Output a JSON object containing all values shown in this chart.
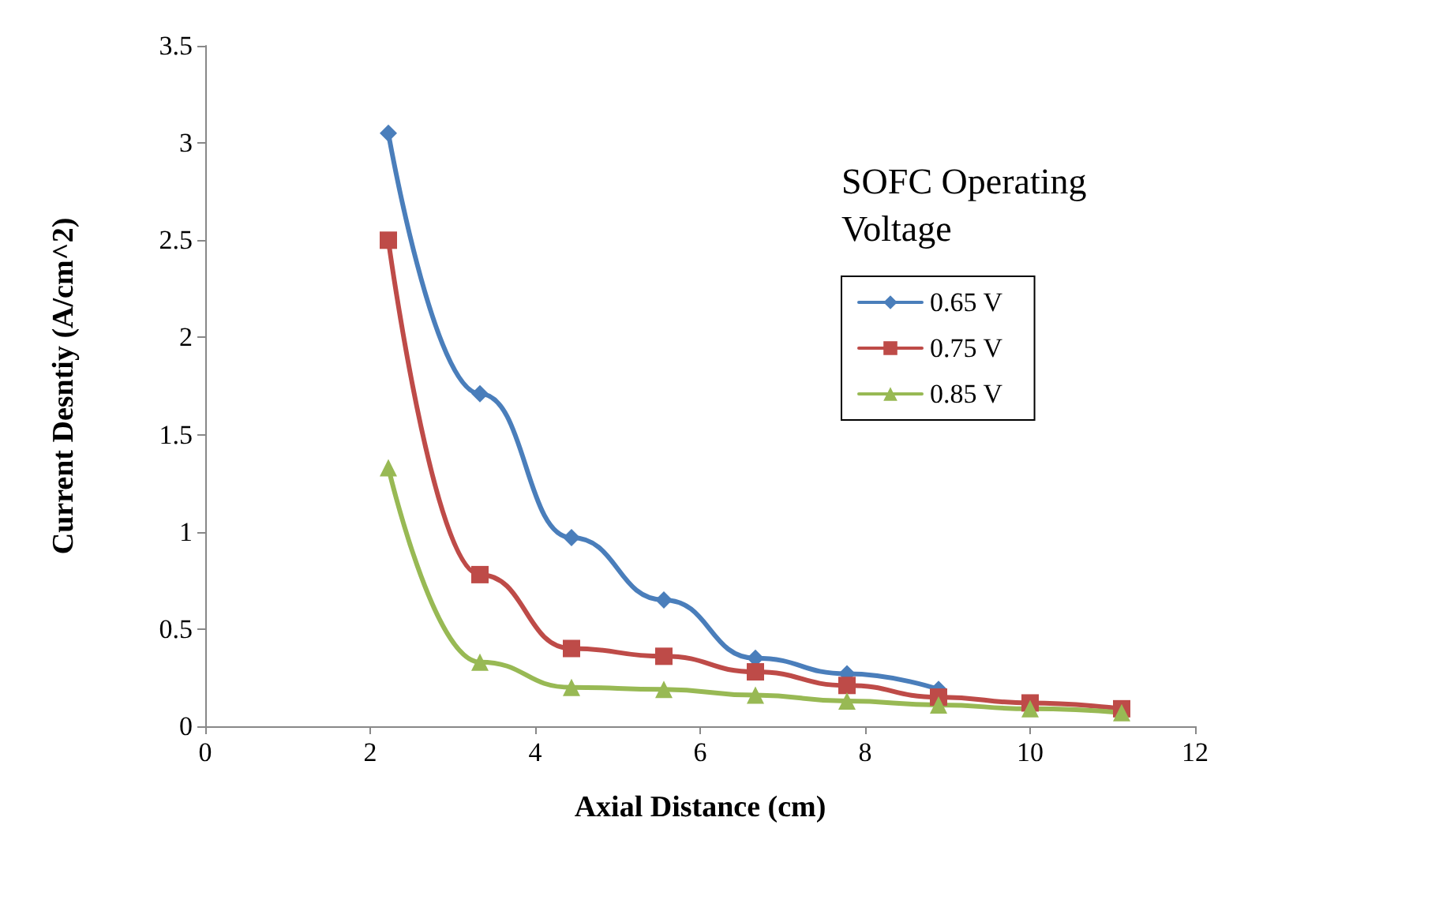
{
  "chart_data": {
    "type": "line",
    "xlabel": "Axial Distance (cm)",
    "ylabel": "Current Desntiy (A/cm^2)",
    "legend_title": "SOFC Operating Voltage",
    "legend": "right",
    "x": [
      2.22,
      3.33,
      4.44,
      5.56,
      6.67,
      7.78,
      8.89,
      10,
      11.11
    ],
    "series": [
      {
        "name": "0.65 V",
        "color": "#4a7ebb",
        "marker": "diamond",
        "values": [
          3.05,
          1.71,
          0.97,
          0.65,
          0.35,
          0.27,
          0.19,
          null,
          null
        ]
      },
      {
        "name": "0.75 V",
        "color": "#be4b48",
        "marker": "square",
        "values": [
          2.5,
          0.78,
          0.4,
          0.36,
          0.28,
          0.21,
          0.15,
          0.12,
          0.09
        ]
      },
      {
        "name": "0.85 V",
        "color": "#98b954",
        "marker": "triangle",
        "values": [
          1.33,
          0.33,
          0.2,
          0.19,
          0.16,
          0.13,
          0.11,
          0.09,
          0.07
        ]
      }
    ],
    "xlim": [
      0,
      12
    ],
    "xticks": [
      0,
      2,
      4,
      6,
      8,
      10,
      12
    ],
    "ylim": [
      0,
      3.5
    ],
    "yticks": [
      0,
      0.5,
      1,
      1.5,
      2,
      2.5,
      3,
      3.5
    ],
    "grid": false,
    "line_style": "solid"
  }
}
